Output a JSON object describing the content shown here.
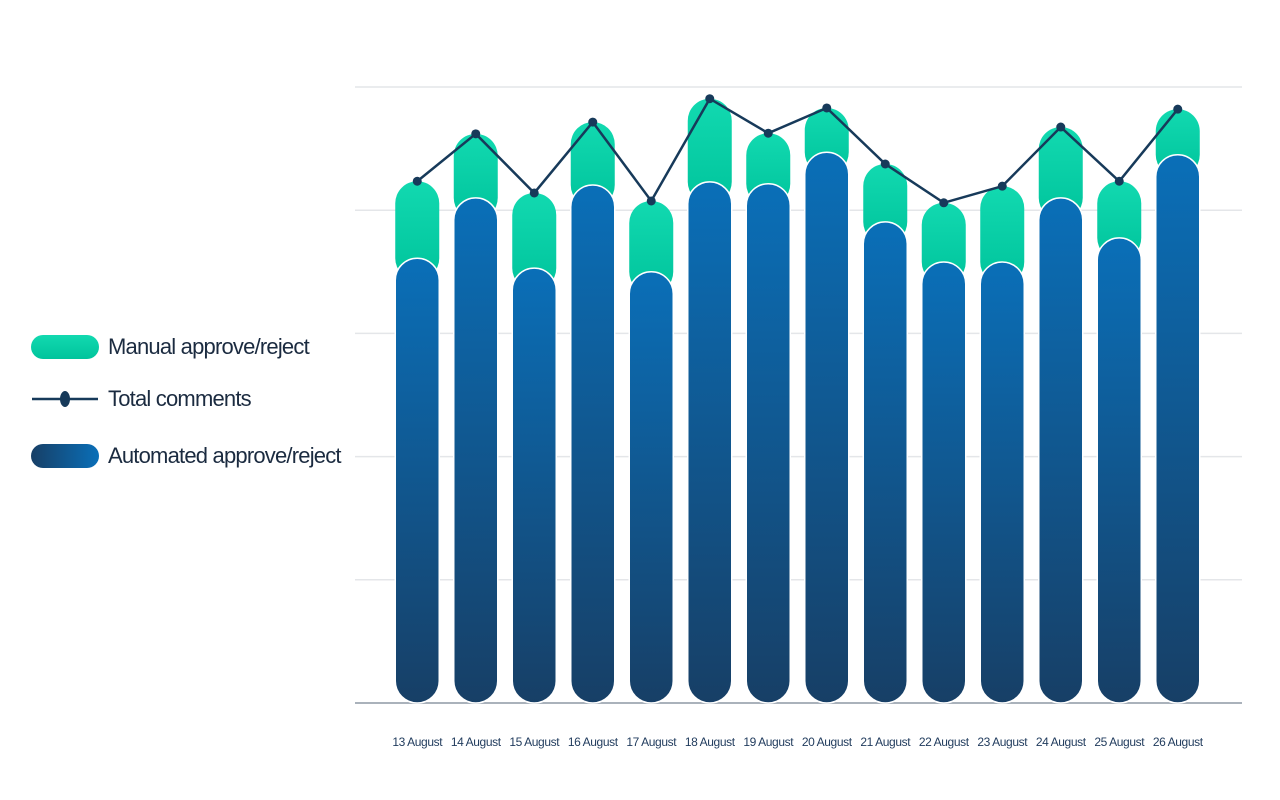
{
  "chart_data": {
    "type": "bar",
    "categories": [
      "13 August",
      "14 August",
      "15 August",
      "16 August",
      "17 August",
      "18 August",
      "19 August",
      "20 August",
      "21 August",
      "22 August",
      "23 August",
      "24 August",
      "25 August",
      "26 August"
    ],
    "series": [
      {
        "name": "Manual approve/reject",
        "type": "bar",
        "color": "#00cfa3",
        "values": [
          12.5,
          10.4,
          12.2,
          10.2,
          11.5,
          13.5,
          8.2,
          7.2,
          9.4,
          9.6,
          12.3,
          11.5,
          9.2,
          7.4
        ]
      },
      {
        "name": "Total comments",
        "type": "line",
        "color": "#173a5a",
        "values": [
          84.7,
          92.4,
          82.8,
          94.3,
          81.5,
          98.1,
          92.5,
          96.6,
          87.5,
          81.2,
          83.9,
          93.5,
          84.7,
          96.4
        ]
      },
      {
        "name": "Automated approve/reject",
        "type": "bar",
        "color": "#0a6fb8",
        "values": [
          72.2,
          82.0,
          70.6,
          84.1,
          70.0,
          84.6,
          84.3,
          89.4,
          78.1,
          71.6,
          71.6,
          82.0,
          75.5,
          89.0
        ]
      }
    ],
    "stacked": true,
    "ylim": [
      0,
      100
    ],
    "yticks": [
      0,
      20,
      40,
      60,
      80,
      100
    ],
    "grid": true,
    "legend": "left"
  }
}
